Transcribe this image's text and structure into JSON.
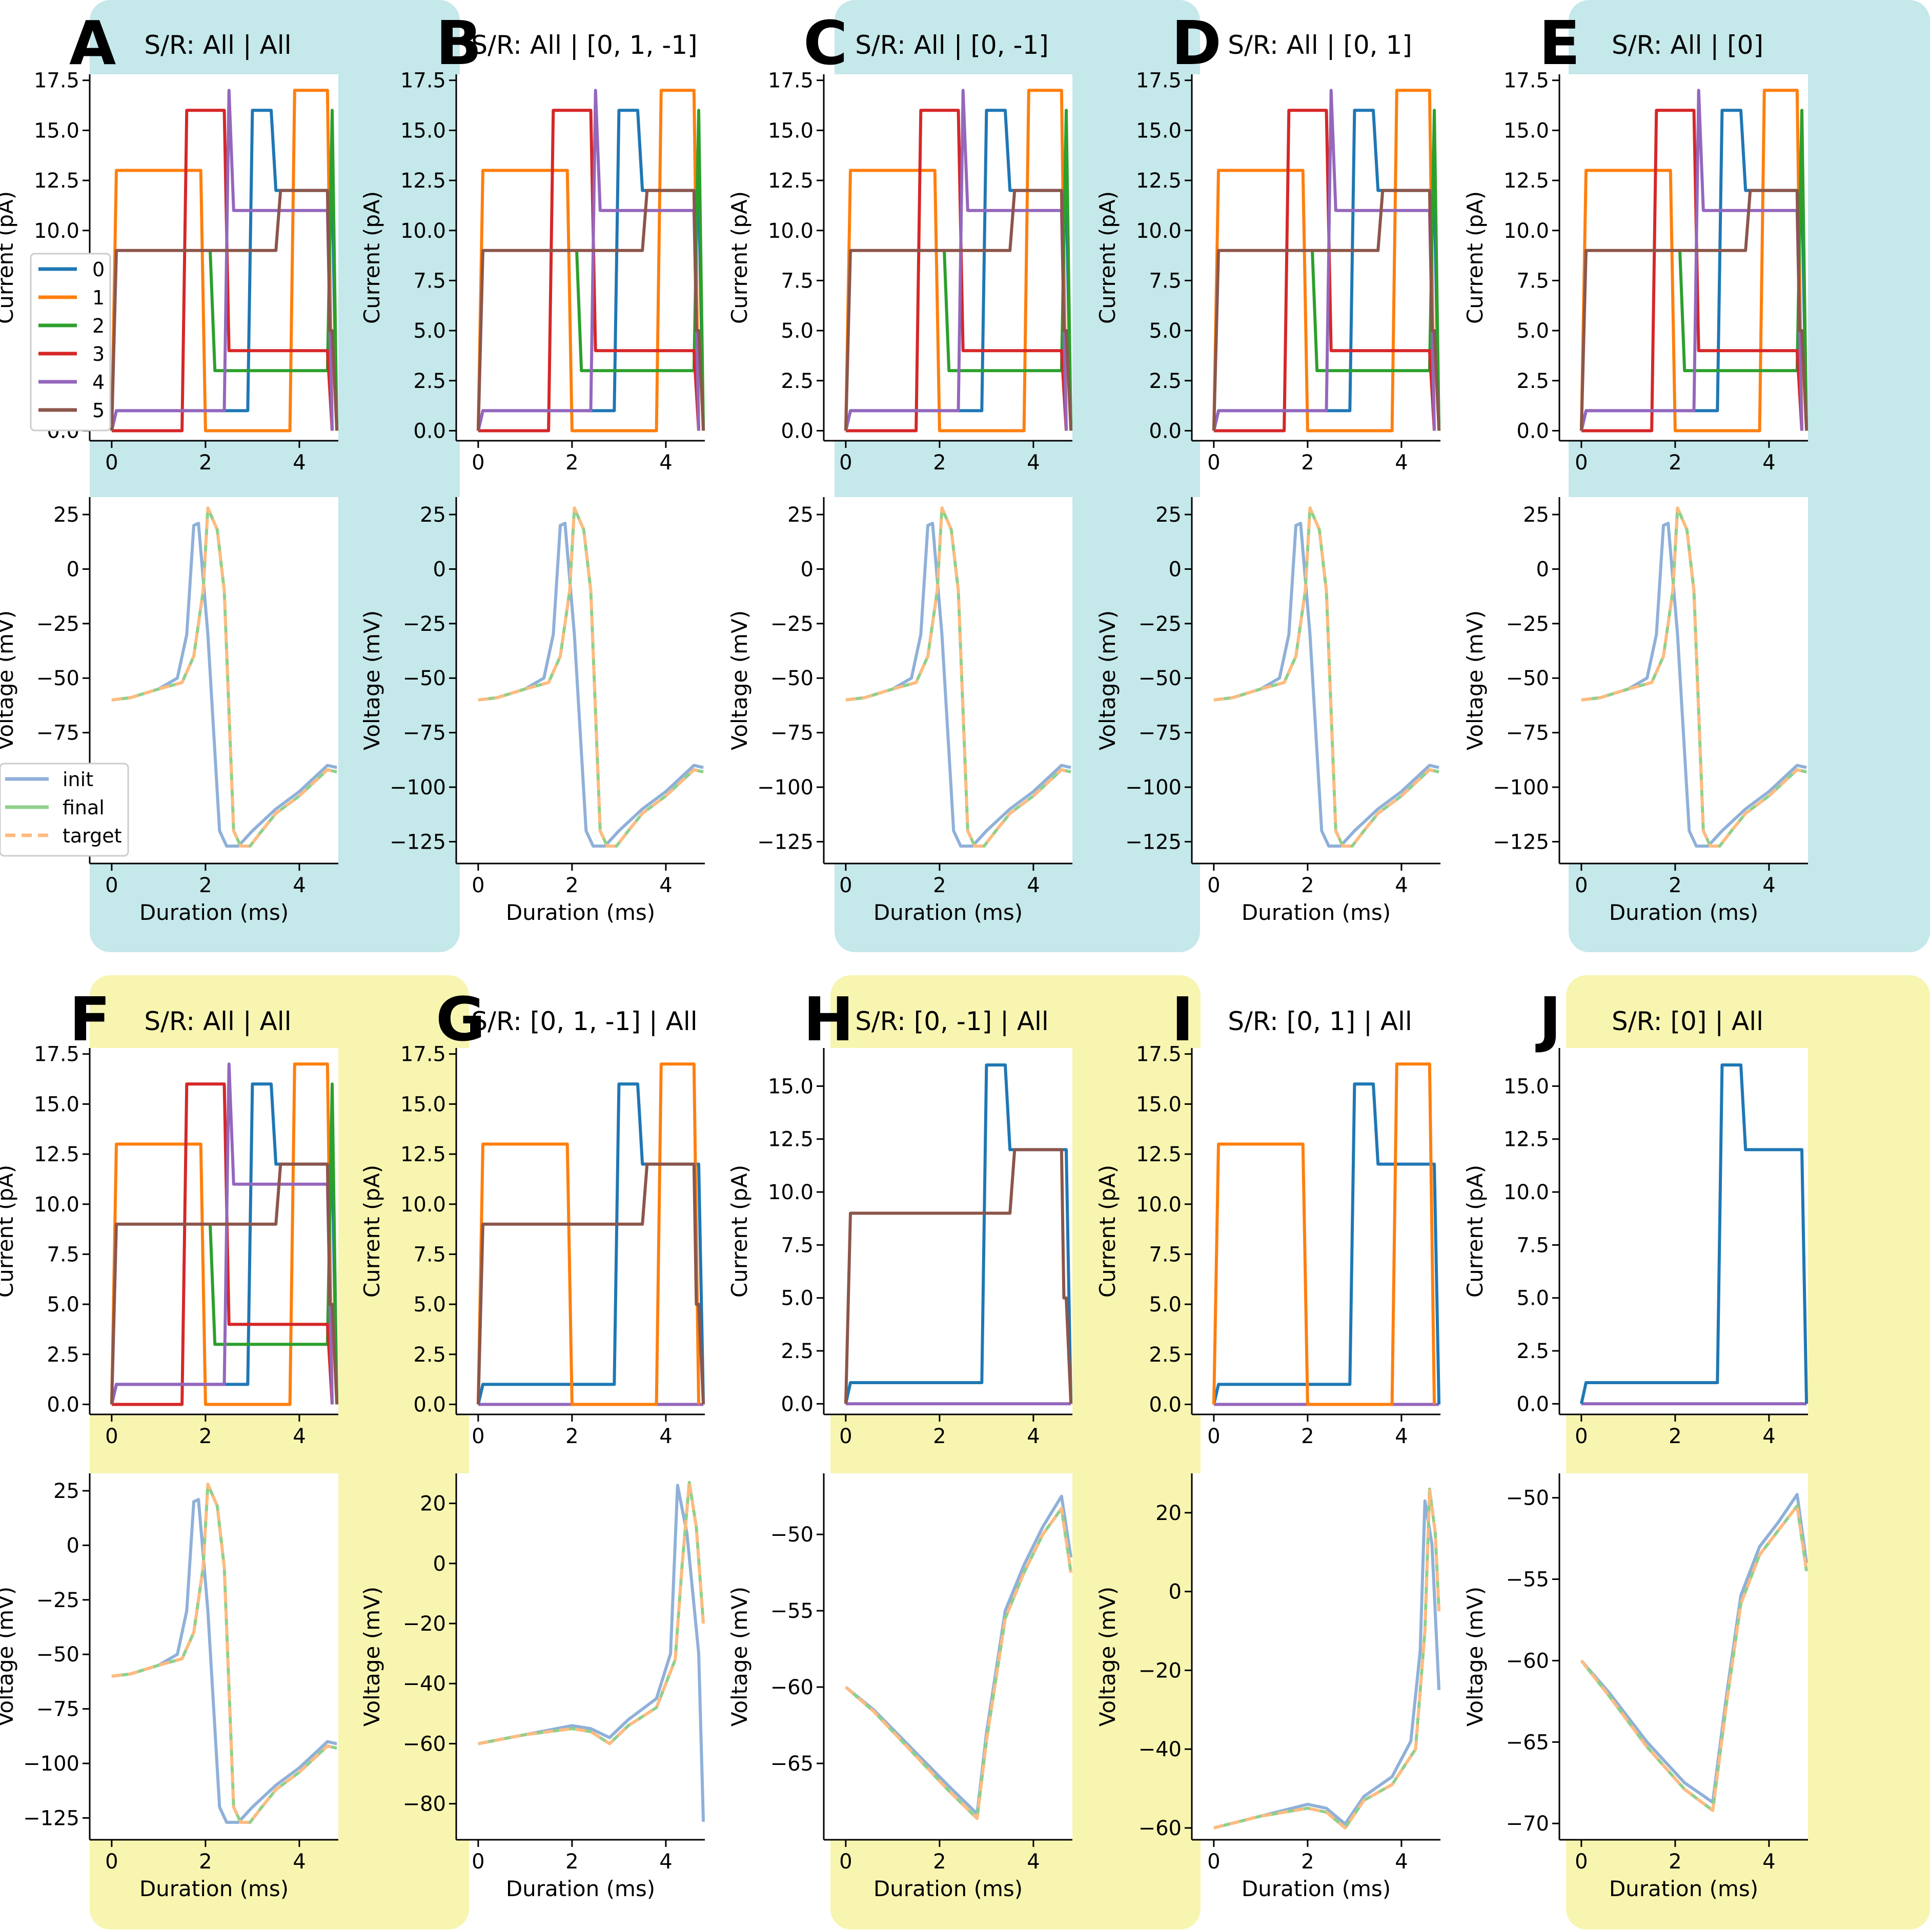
{
  "colors": {
    "teal_bg": "#c5e8ea",
    "yellow_bg": "#f7f5b0",
    "series": [
      "#1f77b4",
      "#ff7f0e",
      "#2ca02c",
      "#d62728",
      "#9467bd",
      "#8c564b"
    ],
    "init": "#8fb0d8",
    "final": "#8fd08c",
    "target": "#ffbb80"
  },
  "legends": {
    "series_labels": [
      "0",
      "1",
      "2",
      "3",
      "4",
      "5"
    ],
    "trace_labels": [
      "init",
      "final",
      "target"
    ]
  },
  "chart_data": [
    {
      "letter": "A",
      "title": "S/R: All | All",
      "type": "line",
      "bg": "teal",
      "visible_series": [
        0,
        1,
        2,
        3,
        4,
        5
      ],
      "current": {
        "ylabel": "Current (pA)",
        "xlabel": "",
        "ylim": [
          -0.5,
          17.8
        ],
        "yticks": [
          "0.0",
          "2.5",
          "5.0",
          "7.5",
          "10.0",
          "12.5",
          "15.0",
          "17.5"
        ],
        "xticks": [
          "0",
          "2",
          "4"
        ]
      },
      "voltage": {
        "ylabel": "Voltage (mV)",
        "xlabel": "Duration (ms)",
        "ylim": [
          -135,
          33
        ],
        "yticks": [
          "25",
          "0",
          "−25",
          "−50",
          "−75",
          "−100",
          "−125"
        ],
        "xticks": [
          "0",
          "2",
          "4"
        ],
        "trace": "full"
      }
    },
    {
      "letter": "B",
      "title": "S/R: All | [0, 1, -1]",
      "type": "line",
      "bg": "none",
      "visible_series": [
        0,
        1,
        2,
        3,
        4,
        5
      ],
      "current": {
        "ylabel": "Current (pA)",
        "xlabel": "",
        "ylim": [
          -0.5,
          17.8
        ],
        "yticks": [
          "0.0",
          "2.5",
          "5.0",
          "7.5",
          "10.0",
          "12.5",
          "15.0",
          "17.5"
        ],
        "xticks": [
          "0",
          "2",
          "4"
        ]
      },
      "voltage": {
        "ylabel": "Voltage (mV)",
        "xlabel": "Duration (ms)",
        "ylim": [
          -135,
          33
        ],
        "yticks": [
          "25",
          "0",
          "−25",
          "−50",
          "−75",
          "−100",
          "−125"
        ],
        "xticks": [
          "0",
          "2",
          "4"
        ],
        "trace": "full"
      }
    },
    {
      "letter": "C",
      "title": "S/R: All | [0, -1]",
      "type": "line",
      "bg": "teal",
      "visible_series": [
        0,
        1,
        2,
        3,
        4,
        5
      ],
      "current": {
        "ylabel": "Current (pA)",
        "xlabel": "",
        "ylim": [
          -0.5,
          17.8
        ],
        "yticks": [
          "0.0",
          "2.5",
          "5.0",
          "7.5",
          "10.0",
          "12.5",
          "15.0",
          "17.5"
        ],
        "xticks": [
          "0",
          "2",
          "4"
        ]
      },
      "voltage": {
        "ylabel": "Voltage (mV)",
        "xlabel": "Duration (ms)",
        "ylim": [
          -135,
          33
        ],
        "yticks": [
          "25",
          "0",
          "−25",
          "−50",
          "−75",
          "−100",
          "−125"
        ],
        "xticks": [
          "0",
          "2",
          "4"
        ],
        "trace": "full"
      }
    },
    {
      "letter": "D",
      "title": "S/R: All | [0, 1]",
      "type": "line",
      "bg": "none",
      "visible_series": [
        0,
        1,
        2,
        3,
        4,
        5
      ],
      "current": {
        "ylabel": "Current (pA)",
        "xlabel": "",
        "ylim": [
          -0.5,
          17.8
        ],
        "yticks": [
          "0.0",
          "2.5",
          "5.0",
          "7.5",
          "10.0",
          "12.5",
          "15.0",
          "17.5"
        ],
        "xticks": [
          "0",
          "2",
          "4"
        ]
      },
      "voltage": {
        "ylabel": "Voltage (mV)",
        "xlabel": "Duration (ms)",
        "ylim": [
          -135,
          33
        ],
        "yticks": [
          "25",
          "0",
          "−25",
          "−50",
          "−75",
          "−100",
          "−125"
        ],
        "xticks": [
          "0",
          "2",
          "4"
        ],
        "trace": "full"
      }
    },
    {
      "letter": "E",
      "title": "S/R: All | [0]",
      "type": "line",
      "bg": "teal",
      "visible_series": [
        0,
        1,
        2,
        3,
        4,
        5
      ],
      "current": {
        "ylabel": "Current (pA)",
        "xlabel": "",
        "ylim": [
          -0.5,
          17.8
        ],
        "yticks": [
          "0.0",
          "2.5",
          "5.0",
          "7.5",
          "10.0",
          "12.5",
          "15.0",
          "17.5"
        ],
        "xticks": [
          "0",
          "2",
          "4"
        ]
      },
      "voltage": {
        "ylabel": "Voltage (mV)",
        "xlabel": "Duration (ms)",
        "ylim": [
          -135,
          33
        ],
        "yticks": [
          "25",
          "0",
          "−25",
          "−50",
          "−75",
          "−100",
          "−125"
        ],
        "xticks": [
          "0",
          "2",
          "4"
        ],
        "trace": "full"
      }
    },
    {
      "letter": "F",
      "title": "S/R: All | All",
      "type": "line",
      "bg": "yellow",
      "visible_series": [
        0,
        1,
        2,
        3,
        4,
        5
      ],
      "current": {
        "ylabel": "Current (pA)",
        "xlabel": "",
        "ylim": [
          -0.5,
          17.8
        ],
        "yticks": [
          "0.0",
          "2.5",
          "5.0",
          "7.5",
          "10.0",
          "12.5",
          "15.0",
          "17.5"
        ],
        "xticks": [
          "0",
          "2",
          "4"
        ]
      },
      "voltage": {
        "ylabel": "Voltage (mV)",
        "xlabel": "Duration (ms)",
        "ylim": [
          -135,
          33
        ],
        "yticks": [
          "25",
          "0",
          "−25",
          "−50",
          "−75",
          "−100",
          "−125"
        ],
        "xticks": [
          "0",
          "2",
          "4"
        ],
        "trace": "full"
      }
    },
    {
      "letter": "G",
      "title": "S/R: [0, 1, -1] | All",
      "type": "line",
      "bg": "none",
      "visible_series": [
        0,
        1,
        5
      ],
      "zero_series": true,
      "current": {
        "ylabel": "Current (pA)",
        "xlabel": "",
        "ylim": [
          -0.5,
          17.8
        ],
        "yticks": [
          "0.0",
          "2.5",
          "5.0",
          "7.5",
          "10.0",
          "12.5",
          "15.0",
          "17.5"
        ],
        "xticks": [
          "0",
          "2",
          "4"
        ]
      },
      "voltage": {
        "ylabel": "Voltage (mV)",
        "xlabel": "Duration (ms)",
        "ylim": [
          -92,
          30
        ],
        "yticks": [
          "20",
          "0",
          "−20",
          "−40",
          "−60",
          "−80"
        ],
        "xticks": [
          "0",
          "2",
          "4"
        ],
        "trace": "spikeEnd"
      }
    },
    {
      "letter": "H",
      "title": "S/R: [0, -1] | All",
      "type": "line",
      "bg": "yellow",
      "visible_series": [
        0,
        5
      ],
      "zero_series": true,
      "current": {
        "ylabel": "Current (pA)",
        "xlabel": "",
        "ylim": [
          -0.5,
          16.8
        ],
        "yticks": [
          "0.0",
          "2.5",
          "5.0",
          "7.5",
          "10.0",
          "12.5",
          "15.0"
        ],
        "xticks": [
          "0",
          "2",
          "4"
        ]
      },
      "voltage": {
        "ylabel": "Voltage (mV)",
        "xlabel": "Duration (ms)",
        "ylim": [
          -70,
          -46
        ],
        "yticks": [
          "−50",
          "−55",
          "−60",
          "−65"
        ],
        "xticks": [
          "0",
          "2",
          "4"
        ],
        "trace": "dipRise"
      }
    },
    {
      "letter": "I",
      "title": "S/R: [0, 1] | All",
      "type": "line",
      "bg": "none",
      "visible_series": [
        0,
        1
      ],
      "zero_series": true,
      "current": {
        "ylabel": "Current (pA)",
        "xlabel": "",
        "ylim": [
          -0.5,
          17.8
        ],
        "yticks": [
          "0.0",
          "2.5",
          "5.0",
          "7.5",
          "10.0",
          "12.5",
          "15.0",
          "17.5"
        ],
        "xticks": [
          "0",
          "2",
          "4"
        ]
      },
      "voltage": {
        "ylabel": "Voltage (mV)",
        "xlabel": "Duration (ms)",
        "ylim": [
          -63,
          30
        ],
        "yticks": [
          "20",
          "0",
          "−20",
          "−40",
          "−60"
        ],
        "xticks": [
          "0",
          "2",
          "4"
        ],
        "trace": "spikeEnd2"
      }
    },
    {
      "letter": "J",
      "title": "S/R: [0] | All",
      "type": "line",
      "bg": "yellow",
      "visible_series": [
        0
      ],
      "zero_series": true,
      "current": {
        "ylabel": "Current (pA)",
        "xlabel": "",
        "ylim": [
          -0.5,
          16.8
        ],
        "yticks": [
          "0.0",
          "2.5",
          "5.0",
          "7.5",
          "10.0",
          "12.5",
          "15.0"
        ],
        "xticks": [
          "0",
          "2",
          "4"
        ]
      },
      "voltage": {
        "ylabel": "Voltage (mV)",
        "xlabel": "Duration (ms)",
        "ylim": [
          -71,
          -48.5
        ],
        "yticks": [
          "−50",
          "−55",
          "−60",
          "−65",
          "−70"
        ],
        "xticks": [
          "0",
          "2",
          "4"
        ],
        "trace": "dipRiseJ"
      }
    }
  ],
  "series_data": {
    "x_range": [
      0,
      4.8
    ],
    "s0": [
      [
        0,
        0
      ],
      [
        0.1,
        1
      ],
      [
        2.9,
        1
      ],
      [
        3.0,
        16
      ],
      [
        3.4,
        16
      ],
      [
        3.5,
        12
      ],
      [
        4.7,
        12
      ],
      [
        4.8,
        0
      ]
    ],
    "s1": [
      [
        0,
        0
      ],
      [
        0.1,
        13
      ],
      [
        1.9,
        13
      ],
      [
        2.0,
        0
      ],
      [
        3.8,
        0
      ],
      [
        3.9,
        17
      ],
      [
        4.6,
        17
      ],
      [
        4.7,
        0
      ]
    ],
    "s2": [
      [
        2.1,
        9
      ],
      [
        2.2,
        3
      ],
      [
        4.6,
        3
      ],
      [
        4.7,
        16
      ],
      [
        4.8,
        0
      ]
    ],
    "s3": [
      [
        0,
        0
      ],
      [
        1.5,
        0
      ],
      [
        1.6,
        16
      ],
      [
        2.4,
        16
      ],
      [
        2.5,
        4
      ],
      [
        4.6,
        4
      ],
      [
        4.7,
        0
      ]
    ],
    "s4": [
      [
        0,
        0
      ],
      [
        0.1,
        1
      ],
      [
        2.4,
        1
      ],
      [
        2.5,
        17
      ],
      [
        2.6,
        11
      ],
      [
        4.6,
        11
      ],
      [
        4.7,
        0
      ]
    ],
    "s5": [
      [
        0,
        0
      ],
      [
        0.1,
        9
      ],
      [
        3.5,
        9
      ],
      [
        3.6,
        12
      ],
      [
        4.6,
        12
      ],
      [
        4.65,
        5
      ],
      [
        4.7,
        5
      ],
      [
        4.8,
        0
      ]
    ],
    "voltage_full_init": [
      [
        0,
        -60
      ],
      [
        0.4,
        -59
      ],
      [
        1.0,
        -55
      ],
      [
        1.4,
        -50
      ],
      [
        1.6,
        -30
      ],
      [
        1.75,
        20
      ],
      [
        1.85,
        21
      ],
      [
        2.05,
        -30
      ],
      [
        2.3,
        -120
      ],
      [
        2.45,
        -127
      ],
      [
        2.7,
        -127
      ],
      [
        3.0,
        -120
      ],
      [
        3.5,
        -110
      ],
      [
        4.0,
        -102
      ],
      [
        4.6,
        -90
      ],
      [
        4.8,
        -91
      ]
    ],
    "voltage_full_final": [
      [
        0,
        -60
      ],
      [
        0.4,
        -59
      ],
      [
        1.0,
        -55
      ],
      [
        1.5,
        -52
      ],
      [
        1.75,
        -40
      ],
      [
        1.95,
        -10
      ],
      [
        2.05,
        28
      ],
      [
        2.25,
        18
      ],
      [
        2.4,
        -10
      ],
      [
        2.6,
        -120
      ],
      [
        2.75,
        -127
      ],
      [
        2.95,
        -127
      ],
      [
        3.2,
        -120
      ],
      [
        3.5,
        -112
      ],
      [
        4.0,
        -104
      ],
      [
        4.6,
        -92
      ],
      [
        4.8,
        -93
      ]
    ],
    "voltage_g_init": [
      [
        0,
        -60
      ],
      [
        1.0,
        -57
      ],
      [
        2.0,
        -54
      ],
      [
        2.4,
        -55
      ],
      [
        2.8,
        -58
      ],
      [
        3.2,
        -52
      ],
      [
        3.8,
        -45
      ],
      [
        4.1,
        -30
      ],
      [
        4.25,
        26
      ],
      [
        4.45,
        10
      ],
      [
        4.7,
        -30
      ],
      [
        4.8,
        -86
      ]
    ],
    "voltage_g_final": [
      [
        0,
        -60
      ],
      [
        1.0,
        -57
      ],
      [
        2.0,
        -55
      ],
      [
        2.4,
        -56
      ],
      [
        2.8,
        -60
      ],
      [
        3.2,
        -54
      ],
      [
        3.8,
        -48
      ],
      [
        4.2,
        -32
      ],
      [
        4.35,
        0
      ],
      [
        4.5,
        27
      ],
      [
        4.65,
        12
      ],
      [
        4.8,
        -20
      ]
    ],
    "voltage_h_init": [
      [
        0,
        -60
      ],
      [
        0.6,
        -61.5
      ],
      [
        1.4,
        -64
      ],
      [
        2.2,
        -66.5
      ],
      [
        2.8,
        -68.3
      ],
      [
        3.0,
        -63
      ],
      [
        3.4,
        -55
      ],
      [
        3.8,
        -52
      ],
      [
        4.2,
        -49.5
      ],
      [
        4.6,
        -47.5
      ],
      [
        4.8,
        -51.5
      ]
    ],
    "voltage_h_final": [
      [
        0,
        -60
      ],
      [
        0.6,
        -61.6
      ],
      [
        1.4,
        -64.2
      ],
      [
        2.2,
        -66.8
      ],
      [
        2.8,
        -68.6
      ],
      [
        3.0,
        -63.5
      ],
      [
        3.4,
        -55.5
      ],
      [
        3.8,
        -52.5
      ],
      [
        4.2,
        -50
      ],
      [
        4.6,
        -48.3
      ],
      [
        4.8,
        -52.5
      ]
    ],
    "voltage_i_init": [
      [
        0,
        -60
      ],
      [
        1.0,
        -57
      ],
      [
        2.0,
        -54
      ],
      [
        2.4,
        -55
      ],
      [
        2.8,
        -59
      ],
      [
        3.2,
        -52
      ],
      [
        3.8,
        -47
      ],
      [
        4.2,
        -38
      ],
      [
        4.4,
        -15
      ],
      [
        4.5,
        23
      ],
      [
        4.65,
        12
      ],
      [
        4.8,
        -25
      ]
    ],
    "voltage_i_final": [
      [
        0,
        -60
      ],
      [
        1.0,
        -57
      ],
      [
        2.0,
        -55
      ],
      [
        2.4,
        -56
      ],
      [
        2.8,
        -60
      ],
      [
        3.2,
        -53
      ],
      [
        3.8,
        -49
      ],
      [
        4.3,
        -40
      ],
      [
        4.5,
        -10
      ],
      [
        4.6,
        26
      ],
      [
        4.72,
        15
      ],
      [
        4.8,
        -5
      ]
    ],
    "voltage_j_init": [
      [
        0,
        -60
      ],
      [
        0.6,
        -62
      ],
      [
        1.4,
        -65
      ],
      [
        2.2,
        -67.5
      ],
      [
        2.8,
        -68.7
      ],
      [
        3.1,
        -62
      ],
      [
        3.4,
        -56
      ],
      [
        3.8,
        -53
      ],
      [
        4.2,
        -51.5
      ],
      [
        4.6,
        -49.8
      ],
      [
        4.8,
        -54
      ]
    ],
    "voltage_j_final": [
      [
        0,
        -60
      ],
      [
        0.6,
        -62.2
      ],
      [
        1.4,
        -65.3
      ],
      [
        2.2,
        -67.9
      ],
      [
        2.8,
        -69.2
      ],
      [
        3.1,
        -62.5
      ],
      [
        3.4,
        -56.5
      ],
      [
        3.8,
        -53.5
      ],
      [
        4.2,
        -52
      ],
      [
        4.6,
        -50.5
      ],
      [
        4.8,
        -54.5
      ]
    ]
  }
}
